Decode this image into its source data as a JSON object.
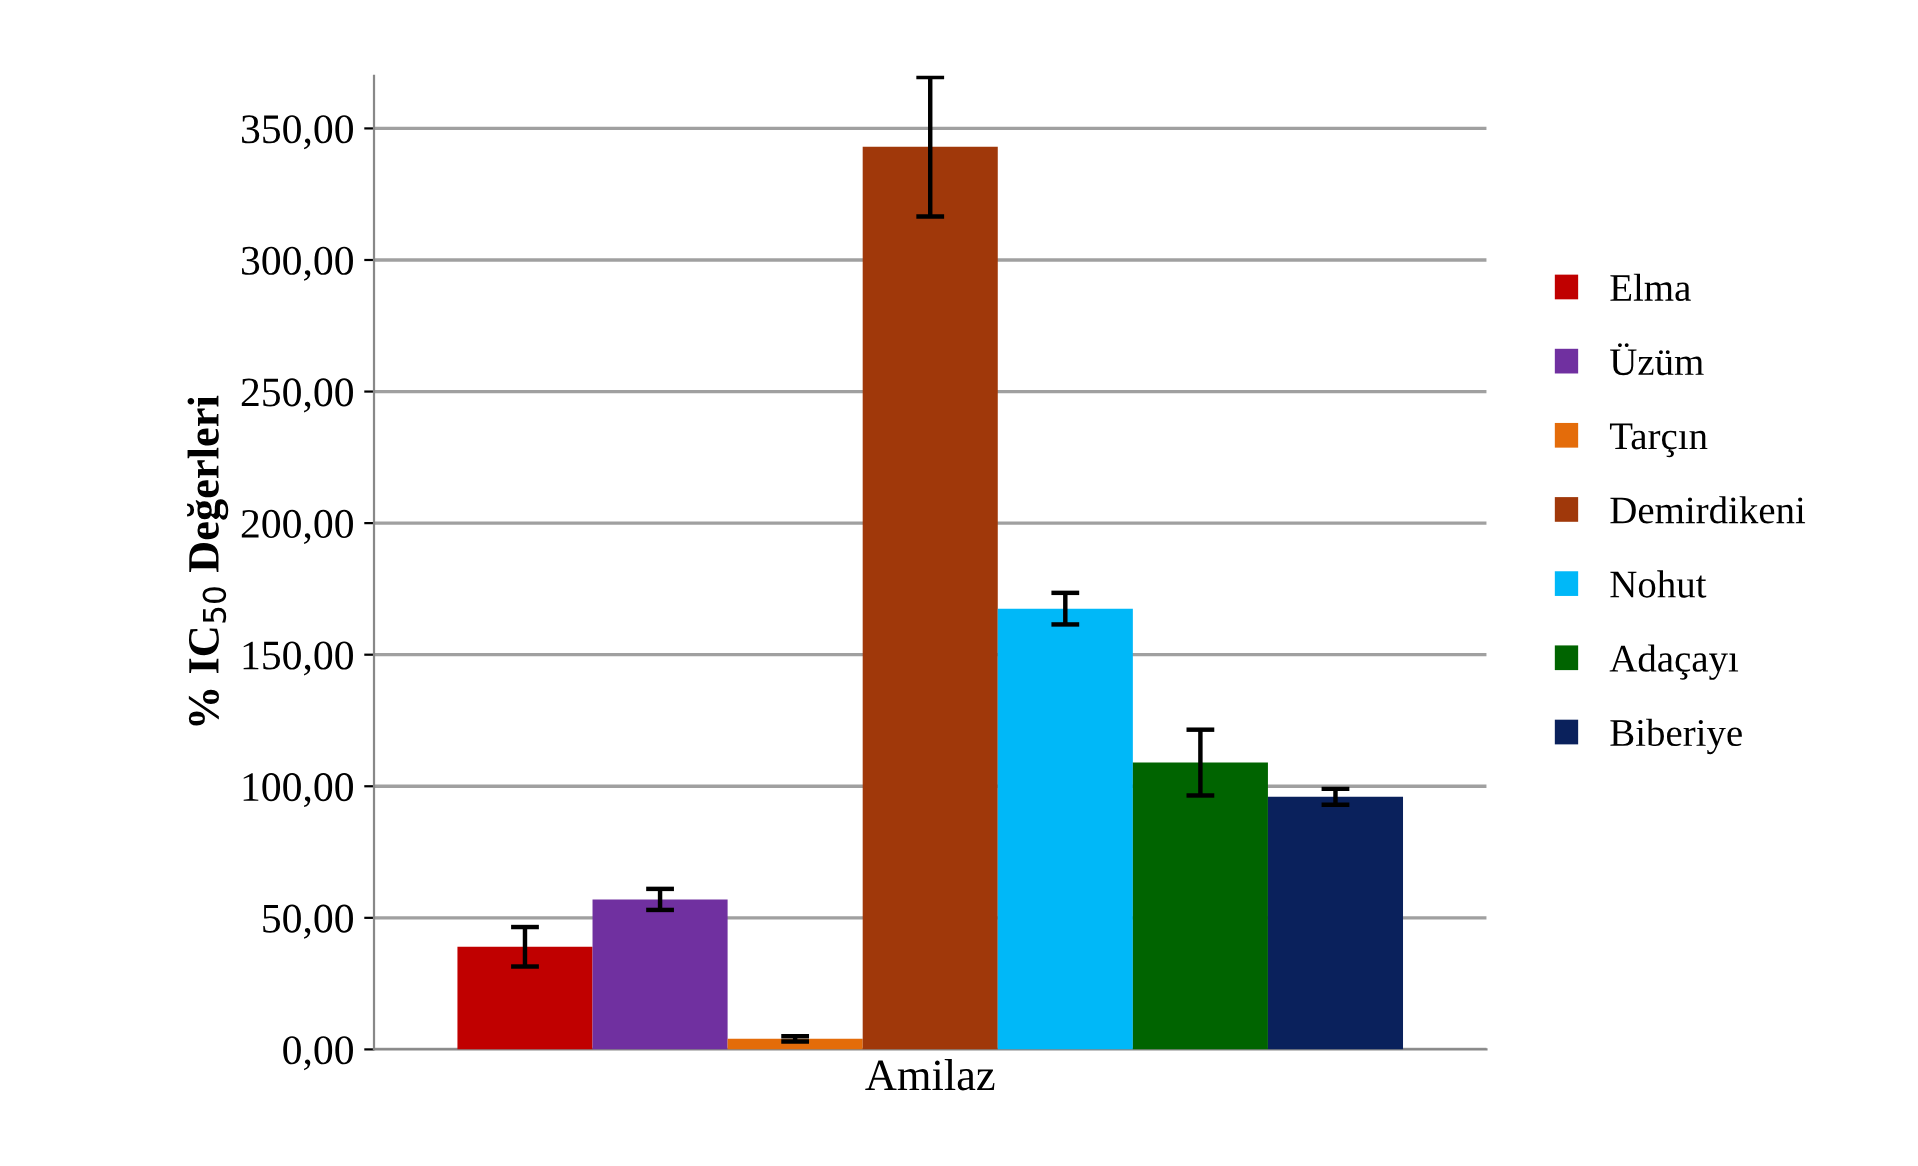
{
  "chart_data": {
    "type": "bar",
    "ylabel": "% IC$_{50}$ Değerleri",
    "categories": [
      "Amilaz"
    ],
    "series": [
      {
        "name": "Elma",
        "color": "#c00000",
        "values": [
          39
        ],
        "errors": [
          7.5
        ]
      },
      {
        "name": "Üzüm",
        "color": "#7030a0",
        "values": [
          57
        ],
        "errors": [
          4
        ]
      },
      {
        "name": "Tarçın",
        "color": "#e46c0a",
        "values": [
          4
        ],
        "errors": [
          1
        ]
      },
      {
        "name": "Demirdikeni",
        "color": "#a0380a",
        "values": [
          343
        ],
        "errors": [
          26.5
        ]
      },
      {
        "name": "Nohut",
        "color": "#00b8f8",
        "values": [
          167.5
        ],
        "errors": [
          6
        ]
      },
      {
        "name": "Adaçayı",
        "color": "#006400",
        "values": [
          109
        ],
        "errors": [
          12.5
        ]
      },
      {
        "name": "Biberiye",
        "color": "#0a215c",
        "values": [
          96
        ],
        "errors": [
          3
        ]
      }
    ],
    "ylim": [
      0,
      370
    ],
    "yticks": [
      {
        "value": 0,
        "label": "0,00"
      },
      {
        "value": 50,
        "label": "50,00"
      },
      {
        "value": 100,
        "label": "100,00"
      },
      {
        "value": 150,
        "label": "150,00"
      },
      {
        "value": 200,
        "label": "200,00"
      },
      {
        "value": 250,
        "label": "250,00"
      },
      {
        "value": 300,
        "label": "300,00"
      },
      {
        "value": 350,
        "label": "350,00"
      }
    ],
    "grid": "y",
    "legend": "right"
  }
}
